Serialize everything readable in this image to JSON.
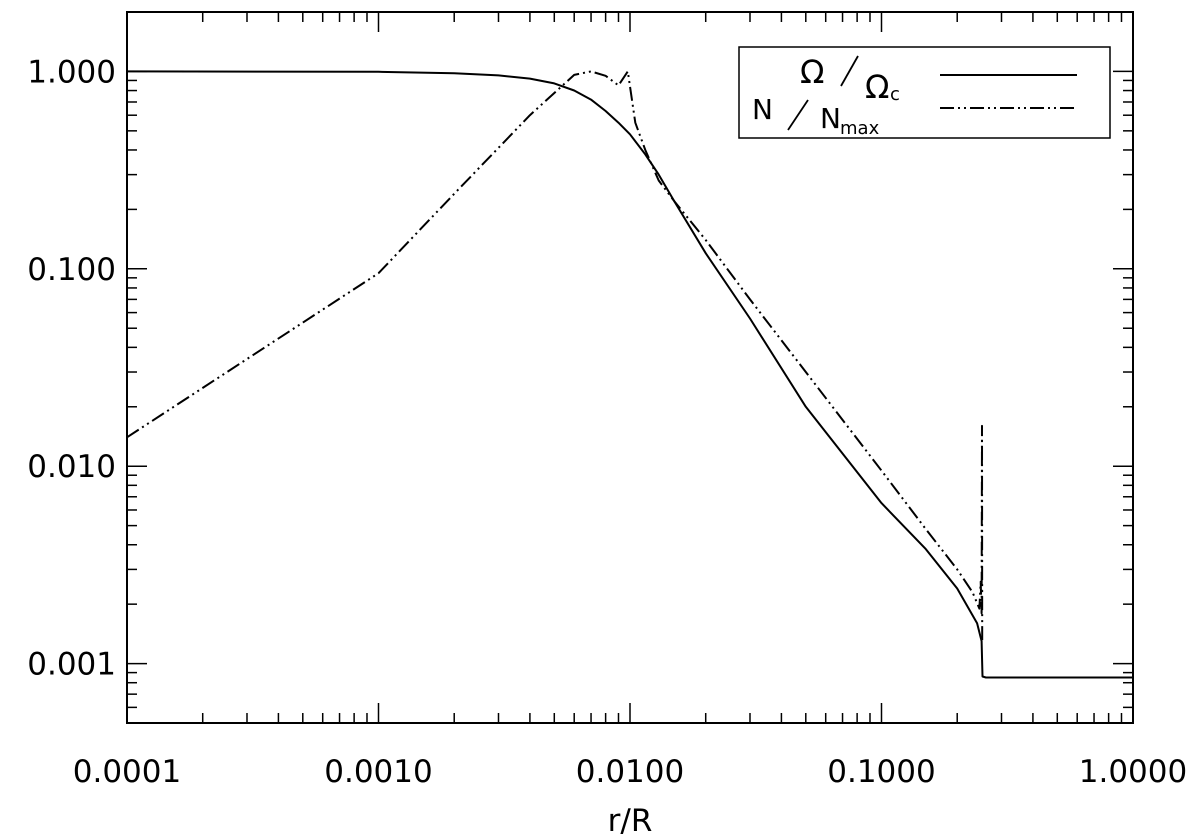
{
  "chart_data": {
    "type": "line",
    "title": "",
    "xlabel": "r/R",
    "ylabel": "",
    "x_scale": "log",
    "y_scale": "log",
    "xlim": [
      0.0001,
      1.0
    ],
    "ylim": [
      0.0005,
      2.0
    ],
    "grid": false,
    "legend_position": "top-right",
    "x_tick_labels": [
      "0.0001",
      "0.0010",
      "0.0100",
      "0.1000",
      "1.0000"
    ],
    "y_tick_labels": [
      "1.000",
      "0.100",
      "0.010",
      "0.001"
    ],
    "legend": {
      "entries": [
        {
          "numerator": "Ω",
          "denominator": "Ω",
          "denominator_sub": "c",
          "line_style": "solid"
        },
        {
          "numerator": "N",
          "denominator": "N",
          "denominator_sub": "max",
          "line_style": "dash-dot-dot"
        }
      ]
    },
    "series": [
      {
        "line_style": "solid",
        "color": "#000000",
        "x": [
          0.0001,
          0.001,
          0.002,
          0.003,
          0.004,
          0.005,
          0.006,
          0.007,
          0.008,
          0.009,
          0.01,
          0.0115,
          0.013,
          0.015,
          0.02,
          0.03,
          0.05,
          0.1,
          0.15,
          0.2,
          0.24,
          0.25,
          0.252,
          0.26,
          0.3,
          0.5,
          1.0
        ],
        "y": [
          1.0,
          0.995,
          0.98,
          0.955,
          0.92,
          0.87,
          0.8,
          0.72,
          0.63,
          0.55,
          0.48,
          0.38,
          0.3,
          0.22,
          0.12,
          0.056,
          0.02,
          0.0065,
          0.0038,
          0.0024,
          0.0016,
          0.0013,
          0.00086,
          0.00085,
          0.00085,
          0.00085,
          0.00085
        ]
      },
      {
        "line_style": "dash-dot-dot",
        "color": "#000000",
        "x": [
          0.0001,
          0.001,
          0.002,
          0.004,
          0.006,
          0.007,
          0.008,
          0.009,
          0.0098,
          0.0105,
          0.0115,
          0.013,
          0.015,
          0.02,
          0.03,
          0.05,
          0.1,
          0.15,
          0.2,
          0.23,
          0.245,
          0.248,
          0.25,
          0.251,
          0.2515
        ],
        "y": [
          0.014,
          0.095,
          0.24,
          0.6,
          0.96,
          1.0,
          0.95,
          0.85,
          1.0,
          0.55,
          0.4,
          0.28,
          0.22,
          0.14,
          0.07,
          0.03,
          0.0095,
          0.0048,
          0.003,
          0.0023,
          0.0019,
          0.0026,
          0.0018,
          0.016,
          0.0013
        ]
      }
    ]
  }
}
